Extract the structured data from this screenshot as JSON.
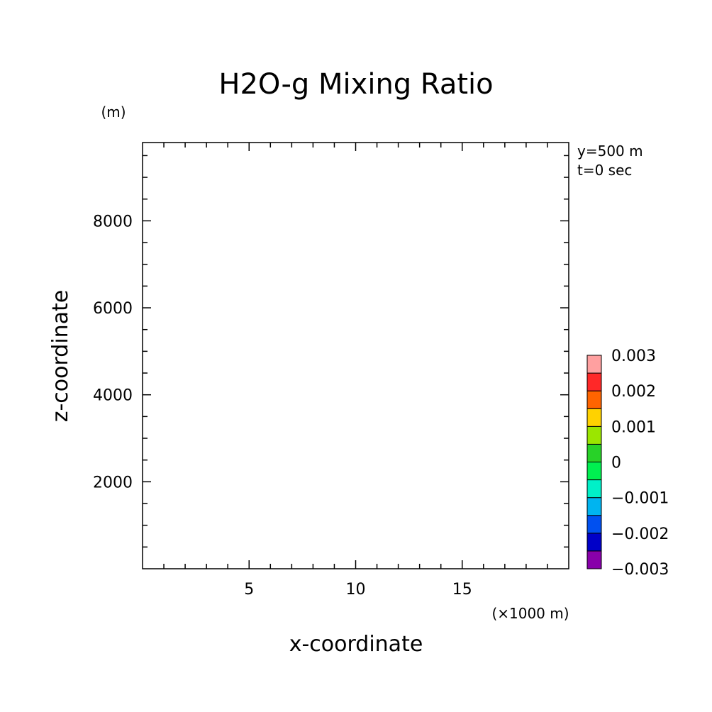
{
  "chart_data": {
    "type": "heatmap",
    "title": "H2O-g Mixing Ratio",
    "xlabel": "x-coordinate",
    "ylabel": "z-coordinate",
    "x_unit": "(×1000 m)",
    "y_unit": "(m)",
    "info_lines": [
      "y=500 m",
      "t=0 sec"
    ],
    "xlim": [
      0,
      20
    ],
    "ylim": [
      0,
      9800
    ],
    "x_ticks": [
      5,
      10,
      15
    ],
    "x_tick_labels": [
      "5",
      "10",
      "15"
    ],
    "x_minor_step": 1,
    "y_ticks": [
      2000,
      4000,
      6000,
      8000
    ],
    "y_tick_labels": [
      "2000",
      "4000",
      "6000",
      "8000"
    ],
    "y_minor_step": 500,
    "grid": false,
    "plotted_field": "none (empty plot area)",
    "colorbar": {
      "levels": [
        -0.003,
        -0.0025,
        -0.002,
        -0.0015,
        -0.001,
        -0.0005,
        0,
        0.0005,
        0.001,
        0.0015,
        0.002,
        0.0025,
        0.003
      ],
      "labels": [
        "0.003",
        "0.002",
        "0.001",
        "0",
        "−0.001",
        "−0.002",
        "−0.003"
      ],
      "colors_bottom_to_top": [
        "#8800aa",
        "#0000c8",
        "#0050f0",
        "#00b4f0",
        "#00f0c8",
        "#00f050",
        "#28d228",
        "#9be600",
        "#ffd200",
        "#ff6400",
        "#ff2828",
        "#ffa0a0"
      ]
    }
  }
}
